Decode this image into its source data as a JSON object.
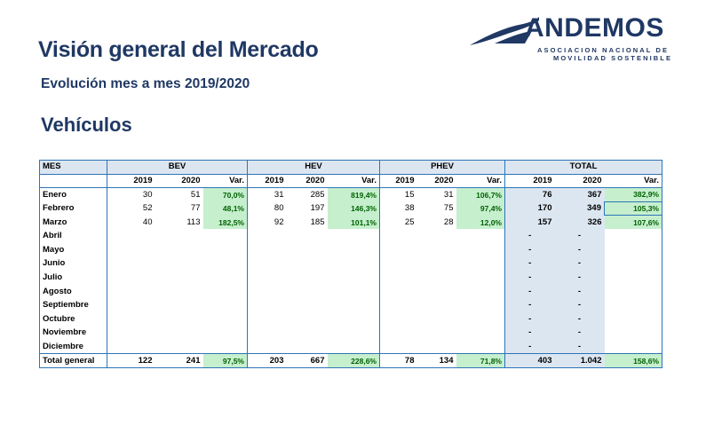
{
  "header": {
    "title": "Visión general del Mercado",
    "subtitle": "Evolución mes a mes 2019/2020",
    "section": "Vehículos"
  },
  "logo": {
    "wordmark": "ANDEMOS",
    "line1": "ASOCIACION NACIONAL DE",
    "line2": "MOVILIDAD SOSTENIBLE",
    "color": "#1f3864"
  },
  "colors": {
    "accent": "#1f3864",
    "border": "#2e75b6",
    "header_fill": "#dce6f1",
    "var_fill": "#c6efce",
    "var_text": "#006100"
  },
  "table": {
    "mes_label": "MES",
    "groups": [
      "BEV",
      "HEV",
      "PHEV",
      "TOTAL"
    ],
    "sub_headers": [
      "2019",
      "2020",
      "Var."
    ],
    "rows": [
      {
        "month": "Enero",
        "bev": [
          "30",
          "51",
          "70,0%"
        ],
        "hev": [
          "31",
          "285",
          "819,4%"
        ],
        "phev": [
          "15",
          "31",
          "106,7%"
        ],
        "total": [
          "76",
          "367",
          "382,9%"
        ]
      },
      {
        "month": "Febrero",
        "bev": [
          "52",
          "77",
          "48,1%"
        ],
        "hev": [
          "80",
          "197",
          "146,3%"
        ],
        "phev": [
          "38",
          "75",
          "97,4%"
        ],
        "total": [
          "170",
          "349",
          "105,3%"
        ]
      },
      {
        "month": "Marzo",
        "bev": [
          "40",
          "113",
          "182,5%"
        ],
        "hev": [
          "92",
          "185",
          "101,1%"
        ],
        "phev": [
          "25",
          "28",
          "12,0%"
        ],
        "total": [
          "157",
          "326",
          "107,6%"
        ]
      },
      {
        "month": "Abril",
        "bev": [
          "",
          "",
          ""
        ],
        "hev": [
          "",
          "",
          ""
        ],
        "phev": [
          "",
          "",
          ""
        ],
        "total": [
          "-",
          "-",
          ""
        ]
      },
      {
        "month": "Mayo",
        "bev": [
          "",
          "",
          ""
        ],
        "hev": [
          "",
          "",
          ""
        ],
        "phev": [
          "",
          "",
          ""
        ],
        "total": [
          "-",
          "-",
          ""
        ]
      },
      {
        "month": "Junio",
        "bev": [
          "",
          "",
          ""
        ],
        "hev": [
          "",
          "",
          ""
        ],
        "phev": [
          "",
          "",
          ""
        ],
        "total": [
          "-",
          "-",
          ""
        ]
      },
      {
        "month": "Julio",
        "bev": [
          "",
          "",
          ""
        ],
        "hev": [
          "",
          "",
          ""
        ],
        "phev": [
          "",
          "",
          ""
        ],
        "total": [
          "-",
          "-",
          ""
        ]
      },
      {
        "month": "Agosto",
        "bev": [
          "",
          "",
          ""
        ],
        "hev": [
          "",
          "",
          ""
        ],
        "phev": [
          "",
          "",
          ""
        ],
        "total": [
          "-",
          "-",
          ""
        ]
      },
      {
        "month": "Septiembre",
        "bev": [
          "",
          "",
          ""
        ],
        "hev": [
          "",
          "",
          ""
        ],
        "phev": [
          "",
          "",
          ""
        ],
        "total": [
          "-",
          "-",
          ""
        ]
      },
      {
        "month": "Octubre",
        "bev": [
          "",
          "",
          ""
        ],
        "hev": [
          "",
          "",
          ""
        ],
        "phev": [
          "",
          "",
          ""
        ],
        "total": [
          "-",
          "-",
          ""
        ]
      },
      {
        "month": "Noviembre",
        "bev": [
          "",
          "",
          ""
        ],
        "hev": [
          "",
          "",
          ""
        ],
        "phev": [
          "",
          "",
          ""
        ],
        "total": [
          "-",
          "-",
          ""
        ]
      },
      {
        "month": "Diciembre",
        "bev": [
          "",
          "",
          ""
        ],
        "hev": [
          "",
          "",
          ""
        ],
        "phev": [
          "",
          "",
          ""
        ],
        "total": [
          "-",
          "-",
          ""
        ]
      }
    ],
    "total_row": {
      "month": "Total general",
      "bev": [
        "122",
        "241",
        "97,5%"
      ],
      "hev": [
        "203",
        "667",
        "228,6%"
      ],
      "phev": [
        "78",
        "134",
        "71,8%"
      ],
      "total": [
        "403",
        "1.042",
        "158,6%"
      ]
    }
  }
}
